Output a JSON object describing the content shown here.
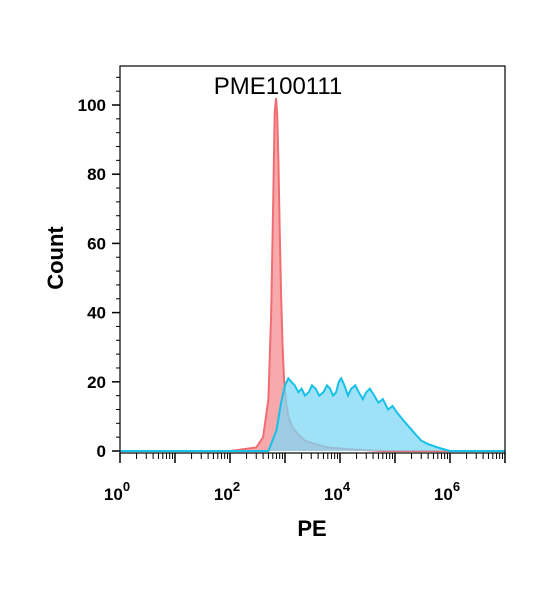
{
  "chart_data": {
    "type": "area",
    "title": "PME100111",
    "xlabel": "PE",
    "ylabel": "Count",
    "x_scale": "log10",
    "xlim": [
      1,
      10000000
    ],
    "ylim": [
      0,
      110
    ],
    "y_ticks": [
      0,
      20,
      40,
      60,
      80,
      100
    ],
    "x_ticks": [
      {
        "base": "10",
        "exp": "0"
      },
      {
        "base": "10",
        "exp": "2"
      },
      {
        "base": "10",
        "exp": "4"
      },
      {
        "base": "10",
        "exp": "6"
      }
    ],
    "grid": false,
    "legend": "none",
    "series": [
      {
        "color": "#f06e72",
        "fill": "#f79a9c",
        "x": [
          1,
          100,
          300,
          400,
          500,
          560,
          610,
          650,
          690,
          720,
          760,
          800,
          850,
          900,
          960,
          1030,
          1150,
          1350,
          1700,
          2300,
          3500,
          6000,
          15000,
          60000,
          10000000
        ],
        "y": [
          0,
          0,
          1,
          4,
          15,
          40,
          72,
          98,
          102,
          97,
          84,
          64,
          45,
          31,
          21,
          15,
          10,
          7,
          5,
          3,
          2,
          1,
          0.5,
          0,
          0
        ]
      },
      {
        "color": "#17c0e6",
        "fill": "#7fd8f4",
        "x": [
          1,
          500,
          700,
          850,
          1000,
          1150,
          1300,
          1500,
          1750,
          2000,
          2300,
          2700,
          3100,
          3600,
          4200,
          5000,
          5800,
          6600,
          7500,
          8500,
          9500,
          10500,
          12000,
          14000,
          16000,
          19000,
          22000,
          26000,
          30000,
          35000,
          42000,
          50000,
          60000,
          75000,
          90000,
          110000,
          140000,
          180000,
          230000,
          300000,
          400000,
          600000,
          1000000,
          10000000
        ],
        "y": [
          0,
          0,
          6,
          14,
          19,
          21,
          20,
          19,
          17,
          18,
          16,
          17,
          19,
          18,
          16,
          17,
          19,
          18,
          16,
          17,
          20,
          21,
          19,
          16,
          18,
          19,
          17,
          15,
          17,
          18,
          16,
          14,
          15,
          12,
          13,
          11,
          9,
          7,
          5,
          3,
          2,
          1,
          0,
          0
        ]
      }
    ]
  }
}
